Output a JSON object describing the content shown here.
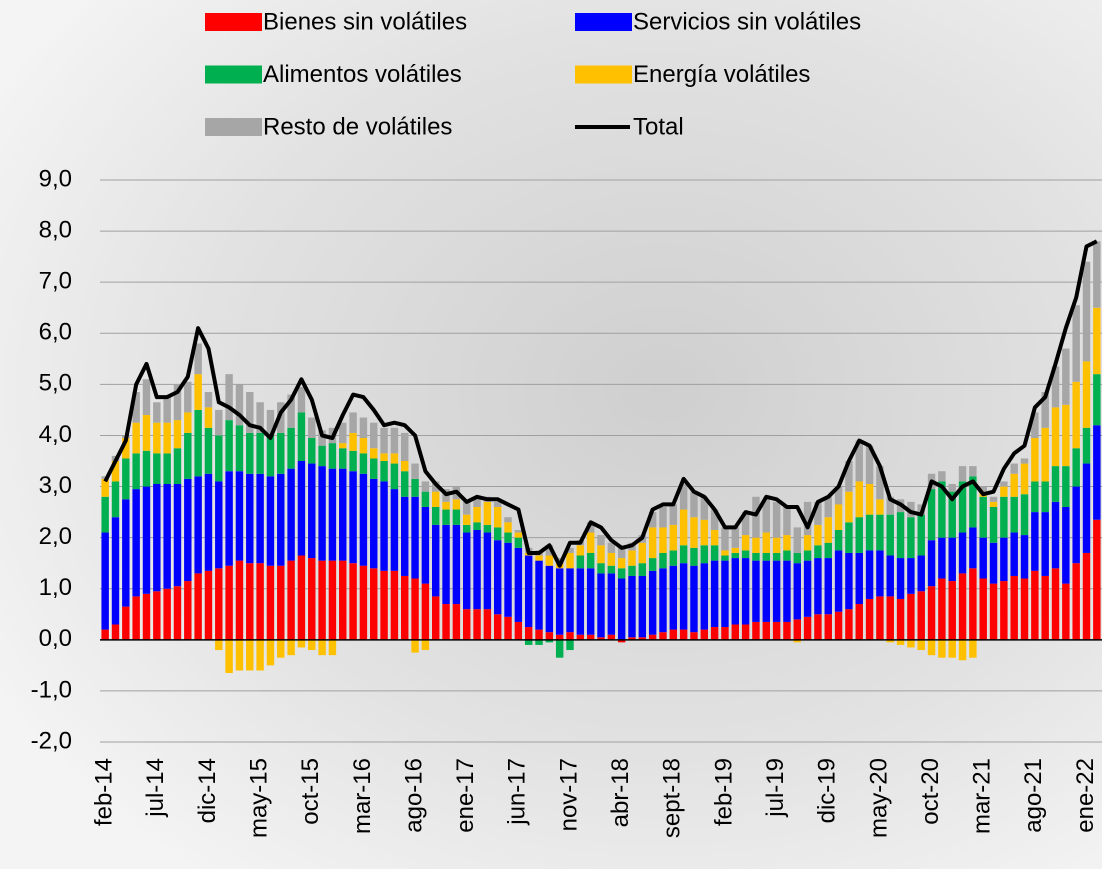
{
  "chart_data": {
    "type": "bar",
    "stacked": true,
    "categories": [
      "feb-14",
      null,
      null,
      null,
      null,
      "jul-14",
      null,
      null,
      null,
      null,
      "dic-14",
      null,
      null,
      null,
      null,
      "may-15",
      null,
      null,
      null,
      null,
      "oct-15",
      null,
      null,
      null,
      null,
      "mar-16",
      null,
      null,
      null,
      null,
      "ago-16",
      null,
      null,
      null,
      null,
      "ene-17",
      null,
      null,
      null,
      null,
      "jun-17",
      null,
      null,
      null,
      null,
      "nov-17",
      null,
      null,
      null,
      null,
      "abr-18",
      null,
      null,
      null,
      null,
      "sept-18",
      null,
      null,
      null,
      null,
      "feb-19",
      null,
      null,
      null,
      null,
      "jul-19",
      null,
      null,
      null,
      null,
      "dic-19",
      null,
      null,
      null,
      null,
      "may-20",
      null,
      null,
      null,
      null,
      "oct-20",
      null,
      null,
      null,
      null,
      "mar-21",
      null,
      null,
      null,
      null,
      "ago-21",
      null,
      null,
      null,
      null,
      "ene-22",
      null
    ],
    "series": [
      {
        "name": "Bienes sin volátiles",
        "color": "#ff0000",
        "values": [
          0.2,
          0.3,
          0.65,
          0.85,
          0.9,
          0.95,
          1.0,
          1.05,
          1.15,
          1.3,
          1.35,
          1.4,
          1.45,
          1.55,
          1.5,
          1.5,
          1.45,
          1.45,
          1.55,
          1.65,
          1.6,
          1.55,
          1.55,
          1.55,
          1.5,
          1.45,
          1.4,
          1.35,
          1.35,
          1.25,
          1.2,
          1.1,
          0.85,
          0.7,
          0.7,
          0.6,
          0.6,
          0.6,
          0.5,
          0.45,
          0.35,
          0.25,
          0.2,
          0.15,
          0.1,
          0.15,
          0.1,
          0.1,
          0.05,
          0.1,
          -0.05,
          0.05,
          0.05,
          0.1,
          0.15,
          0.2,
          0.2,
          0.15,
          0.2,
          0.25,
          0.25,
          0.3,
          0.3,
          0.35,
          0.35,
          0.35,
          0.35,
          0.4,
          0.45,
          0.5,
          0.5,
          0.55,
          0.6,
          0.7,
          0.8,
          0.85,
          0.85,
          0.8,
          0.9,
          0.95,
          1.05,
          1.2,
          1.15,
          1.3,
          1.4,
          1.2,
          1.1,
          1.15,
          1.25,
          1.2,
          1.35,
          1.25,
          1.4,
          1.1,
          1.5,
          1.7,
          2.35
        ]
      },
      {
        "name": "Servicios sin volátiles",
        "color": "#0000ff",
        "values": [
          1.9,
          2.1,
          2.1,
          2.1,
          2.1,
          2.1,
          2.05,
          2.0,
          2.0,
          1.9,
          1.9,
          1.7,
          1.85,
          1.75,
          1.75,
          1.75,
          1.75,
          1.8,
          1.8,
          1.85,
          1.85,
          1.85,
          1.8,
          1.8,
          1.8,
          1.8,
          1.75,
          1.75,
          1.6,
          1.55,
          1.6,
          1.5,
          1.4,
          1.55,
          1.55,
          1.5,
          1.55,
          1.5,
          1.45,
          1.45,
          1.45,
          1.4,
          1.35,
          1.3,
          1.3,
          1.25,
          1.3,
          1.3,
          1.25,
          1.2,
          1.2,
          1.2,
          1.2,
          1.25,
          1.25,
          1.25,
          1.3,
          1.3,
          1.3,
          1.3,
          1.3,
          1.3,
          1.3,
          1.2,
          1.2,
          1.2,
          1.2,
          1.1,
          1.1,
          1.1,
          1.1,
          1.2,
          1.1,
          1.0,
          0.95,
          0.9,
          0.8,
          0.8,
          0.7,
          0.7,
          0.9,
          0.8,
          0.85,
          0.8,
          0.8,
          0.8,
          0.8,
          0.85,
          0.85,
          0.85,
          1.15,
          1.25,
          1.3,
          1.5,
          1.5,
          1.75,
          1.85
        ]
      },
      {
        "name": "Alimentos volátiles",
        "color": "#00b050",
        "values": [
          0.7,
          0.7,
          0.8,
          0.7,
          0.7,
          0.6,
          0.6,
          0.7,
          0.9,
          1.3,
          0.9,
          0.9,
          1.0,
          0.9,
          0.8,
          0.8,
          0.8,
          0.8,
          0.8,
          0.95,
          0.5,
          0.4,
          0.5,
          0.4,
          0.4,
          0.4,
          0.4,
          0.4,
          0.5,
          0.5,
          0.35,
          0.3,
          0.35,
          0.3,
          0.3,
          0.15,
          0.15,
          0.15,
          0.25,
          0.2,
          0.2,
          -0.1,
          -0.1,
          -0.05,
          -0.35,
          -0.2,
          0.25,
          0.3,
          0.2,
          0.15,
          0.2,
          0.2,
          0.25,
          0.25,
          0.3,
          0.3,
          0.35,
          0.35,
          0.35,
          0.3,
          0.1,
          0.1,
          0.15,
          0.15,
          0.15,
          0.15,
          0.2,
          0.2,
          0.2,
          0.25,
          0.3,
          0.4,
          0.6,
          0.7,
          0.7,
          0.7,
          0.8,
          0.9,
          0.8,
          0.8,
          1.0,
          1.1,
          0.9,
          1.0,
          1.0,
          0.8,
          0.7,
          0.8,
          0.7,
          0.8,
          0.6,
          0.6,
          0.7,
          0.8,
          0.75,
          0.7,
          1.0
        ]
      },
      {
        "name": "Energía volátiles",
        "color": "#ffc000",
        "values": [
          0.35,
          0.4,
          0.4,
          0.6,
          0.7,
          0.6,
          0.6,
          0.55,
          0.4,
          0.7,
          0.4,
          -0.2,
          -0.65,
          -0.6,
          -0.6,
          -0.6,
          -0.5,
          -0.35,
          -0.3,
          -0.15,
          -0.2,
          -0.3,
          -0.3,
          0.1,
          0.35,
          0.3,
          0.2,
          0.15,
          0.2,
          0.2,
          -0.25,
          -0.2,
          0.3,
          0.15,
          0.2,
          0.2,
          0.3,
          0.45,
          0.4,
          0.2,
          0.1,
          0.05,
          0.1,
          0.2,
          0.1,
          0.3,
          0.2,
          0.4,
          0.35,
          0.25,
          0.2,
          0.3,
          0.4,
          0.6,
          0.5,
          0.5,
          0.7,
          0.6,
          0.5,
          0.3,
          0.1,
          0.1,
          0.3,
          0.3,
          0.4,
          0.3,
          0.3,
          -0.05,
          0.3,
          0.4,
          0.5,
          0.5,
          0.6,
          0.7,
          0.6,
          0.3,
          -0.05,
          -0.1,
          -0.15,
          -0.2,
          -0.3,
          -0.35,
          -0.35,
          -0.4,
          -0.35,
          0.1,
          0.1,
          0.2,
          0.45,
          0.6,
          0.85,
          1.05,
          1.15,
          1.2,
          1.3,
          1.3,
          1.3
        ]
      },
      {
        "name": "Resto de volátiles",
        "color": "#a6a6a6",
        "values": [
          0.05,
          0.1,
          0.05,
          0.6,
          0.7,
          0.4,
          0.5,
          0.7,
          0.6,
          0.6,
          0.3,
          0.5,
          0.9,
          0.8,
          0.8,
          0.6,
          0.5,
          0.6,
          0.65,
          0.5,
          0.4,
          0.3,
          0.3,
          0.4,
          0.4,
          0.4,
          0.5,
          0.5,
          0.5,
          0.55,
          0.3,
          0.2,
          0.2,
          0.25,
          0.25,
          0.25,
          0.2,
          0.1,
          0.1,
          0.1,
          0.05,
          0.1,
          0.1,
          0.2,
          0.1,
          0.1,
          0.1,
          0.2,
          0.2,
          0.2,
          0.2,
          0.15,
          0.15,
          0.3,
          0.4,
          0.4,
          0.5,
          0.5,
          0.45,
          0.4,
          0.45,
          0.4,
          0.45,
          0.8,
          0.65,
          0.7,
          0.55,
          0.5,
          0.65,
          0.45,
          0.4,
          0.35,
          0.6,
          0.8,
          0.75,
          0.65,
          0.35,
          0.25,
          0.3,
          0.2,
          0.3,
          0.2,
          0.15,
          0.3,
          0.2,
          0.1,
          0.1,
          0.1,
          0.2,
          0.1,
          0.5,
          0.7,
          0.8,
          1.1,
          1.5,
          1.95,
          1.3
        ]
      },
      {
        "name": "Total",
        "type": "line",
        "color": "#000000",
        "values": [
          3.1,
          3.5,
          3.9,
          5.0,
          5.4,
          4.75,
          4.75,
          4.85,
          5.15,
          6.1,
          5.7,
          4.65,
          4.55,
          4.4,
          4.2,
          4.15,
          3.95,
          4.45,
          4.7,
          5.1,
          4.7,
          4.0,
          3.95,
          4.4,
          4.8,
          4.75,
          4.5,
          4.2,
          4.25,
          4.2,
          4.0,
          3.3,
          3.05,
          2.85,
          2.9,
          2.7,
          2.8,
          2.75,
          2.75,
          2.65,
          2.55,
          1.7,
          1.7,
          1.85,
          1.45,
          1.9,
          1.9,
          2.3,
          2.2,
          1.95,
          1.8,
          1.85,
          2.0,
          2.55,
          2.65,
          2.65,
          3.15,
          2.9,
          2.8,
          2.55,
          2.2,
          2.2,
          2.5,
          2.45,
          2.8,
          2.75,
          2.6,
          2.6,
          2.2,
          2.7,
          2.8,
          3.0,
          3.5,
          3.9,
          3.8,
          3.4,
          2.75,
          2.65,
          2.5,
          2.45,
          3.1,
          3.0,
          2.75,
          3.0,
          3.1,
          2.85,
          2.9,
          3.35,
          3.65,
          3.8,
          4.55,
          4.75,
          5.4,
          6.1,
          6.7,
          7.7,
          7.8
        ]
      }
    ],
    "ylim": [
      -2,
      9
    ],
    "yticks": [
      {
        "value": -2,
        "label": "-2,0"
      },
      {
        "value": -1,
        "label": "-1,0"
      },
      {
        "value": 0,
        "label": "0,0"
      },
      {
        "value": 1,
        "label": "1,0"
      },
      {
        "value": 2,
        "label": "2,0"
      },
      {
        "value": 3,
        "label": "3,0"
      },
      {
        "value": 4,
        "label": "4,0"
      },
      {
        "value": 5,
        "label": "5,0"
      },
      {
        "value": 6,
        "label": "6,0"
      },
      {
        "value": 7,
        "label": "7,0"
      },
      {
        "value": 8,
        "label": "8,0"
      },
      {
        "value": 9,
        "label": "9,0"
      }
    ],
    "grid": true,
    "legend": "top"
  }
}
